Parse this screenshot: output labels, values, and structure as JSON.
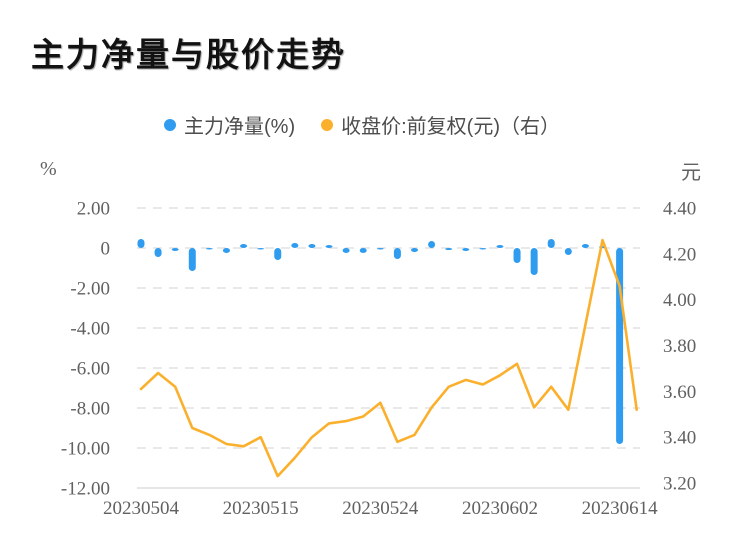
{
  "title": "主力净量与股价走势",
  "chart_data": {
    "type": "combo_bar_line",
    "title": "主力净量与股价走势",
    "legend_position": "top-center",
    "grid": {
      "dashed": true,
      "color": "#e2e2e2"
    },
    "x_count": 30,
    "x_tick_labels": [
      {
        "index": 0,
        "label": "20230504"
      },
      {
        "index": 7,
        "label": "20230515"
      },
      {
        "index": 14,
        "label": "20230524"
      },
      {
        "index": 21,
        "label": "20230602"
      },
      {
        "index": 28,
        "label": "20230614"
      }
    ],
    "left_axis": {
      "name": "%",
      "max": 2,
      "min": -12,
      "tick_step": 2,
      "ticks": [
        "2.00",
        "0",
        "-2.00",
        "-4.00",
        "-6.00",
        "-8.00",
        "-10.00",
        "-12.00"
      ]
    },
    "right_axis": {
      "name": "元",
      "max": 4.4,
      "min": 3.2,
      "tick_step": 0.2,
      "ticks": [
        "4.40",
        "4.20",
        "4.00",
        "3.80",
        "3.60",
        "3.40",
        "3.20"
      ]
    },
    "series": [
      {
        "name": "主力净量(%)",
        "type": "bar",
        "y_axis": "left",
        "color": "#2f9cf0",
        "values": [
          0.45,
          -0.45,
          -0.15,
          -1.15,
          -0.05,
          -0.25,
          0.2,
          -0.05,
          -0.6,
          0.25,
          0.2,
          0.15,
          -0.25,
          -0.25,
          -0.05,
          -0.55,
          -0.2,
          0.35,
          -0.1,
          -0.15,
          -0.05,
          0.15,
          -0.75,
          -1.35,
          0.45,
          -0.35,
          0.2,
          0.1,
          -9.8,
          null
        ]
      },
      {
        "name": "收盘价:前复权(元)（右）",
        "type": "line",
        "y_axis": "right",
        "color": "#fbb02d",
        "values": [
          3.61,
          3.68,
          3.62,
          3.44,
          3.41,
          3.37,
          3.36,
          3.4,
          3.23,
          3.31,
          3.4,
          3.46,
          3.47,
          3.49,
          3.55,
          3.38,
          3.41,
          3.53,
          3.62,
          3.65,
          3.63,
          3.67,
          3.72,
          3.53,
          3.62,
          3.52,
          3.89,
          4.26,
          4.06,
          3.52
        ]
      }
    ]
  }
}
